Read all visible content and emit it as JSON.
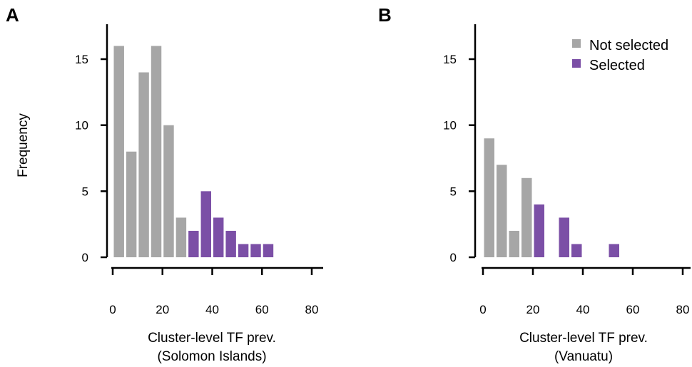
{
  "ylabel": "Frequency",
  "legend": {
    "items": [
      {
        "label": "Not selected",
        "color": "#a6a6a6"
      },
      {
        "label": "Selected",
        "color": "#7b4fa6"
      }
    ],
    "placement": "top-right of panel B"
  },
  "chart_data": [
    {
      "type": "bar",
      "panel": "A",
      "xlabel_line1": "Cluster-level TF prev.",
      "xlabel_line2": "(Solomon Islands)",
      "ylabel": "Frequency",
      "xlim": [
        0,
        80
      ],
      "ylim": [
        0,
        17
      ],
      "xticks": [
        0,
        20,
        40,
        60,
        80
      ],
      "yticks": [
        0,
        5,
        10,
        15
      ],
      "bin_width": 5,
      "bins": [
        {
          "x": [
            0,
            5
          ],
          "value": 16,
          "group": "Not selected"
        },
        {
          "x": [
            5,
            10
          ],
          "value": 8,
          "group": "Not selected"
        },
        {
          "x": [
            10,
            15
          ],
          "value": 14,
          "group": "Not selected"
        },
        {
          "x": [
            15,
            20
          ],
          "value": 16,
          "group": "Not selected"
        },
        {
          "x": [
            20,
            25
          ],
          "value": 10,
          "group": "Not selected"
        },
        {
          "x": [
            25,
            30
          ],
          "value": 3,
          "group": "Not selected"
        },
        {
          "x": [
            30,
            35
          ],
          "value": 2,
          "group": "Selected"
        },
        {
          "x": [
            35,
            40
          ],
          "value": 5,
          "group": "Selected"
        },
        {
          "x": [
            40,
            45
          ],
          "value": 3,
          "group": "Selected"
        },
        {
          "x": [
            45,
            50
          ],
          "value": 2,
          "group": "Selected"
        },
        {
          "x": [
            50,
            55
          ],
          "value": 1,
          "group": "Selected"
        },
        {
          "x": [
            55,
            60
          ],
          "value": 1,
          "group": "Selected"
        },
        {
          "x": [
            60,
            65
          ],
          "value": 1,
          "group": "Selected"
        }
      ]
    },
    {
      "type": "bar",
      "panel": "B",
      "xlabel_line1": "Cluster-level TF prev.",
      "xlabel_line2": "(Vanuatu)",
      "xlim": [
        0,
        80
      ],
      "ylim": [
        0,
        17
      ],
      "xticks": [
        0,
        20,
        40,
        60,
        80
      ],
      "yticks": [
        0,
        5,
        10,
        15
      ],
      "bin_width": 5,
      "bins": [
        {
          "x": [
            0,
            5
          ],
          "value": 9,
          "group": "Not selected"
        },
        {
          "x": [
            5,
            10
          ],
          "value": 7,
          "group": "Not selected"
        },
        {
          "x": [
            10,
            15
          ],
          "value": 2,
          "group": "Not selected"
        },
        {
          "x": [
            15,
            20
          ],
          "value": 6,
          "group": "Not selected"
        },
        {
          "x": [
            20,
            25
          ],
          "value": 4,
          "group": "Selected"
        },
        {
          "x": [
            30,
            35
          ],
          "value": 3,
          "group": "Selected"
        },
        {
          "x": [
            35,
            40
          ],
          "value": 1,
          "group": "Selected"
        },
        {
          "x": [
            50,
            55
          ],
          "value": 1,
          "group": "Selected"
        }
      ]
    }
  ]
}
